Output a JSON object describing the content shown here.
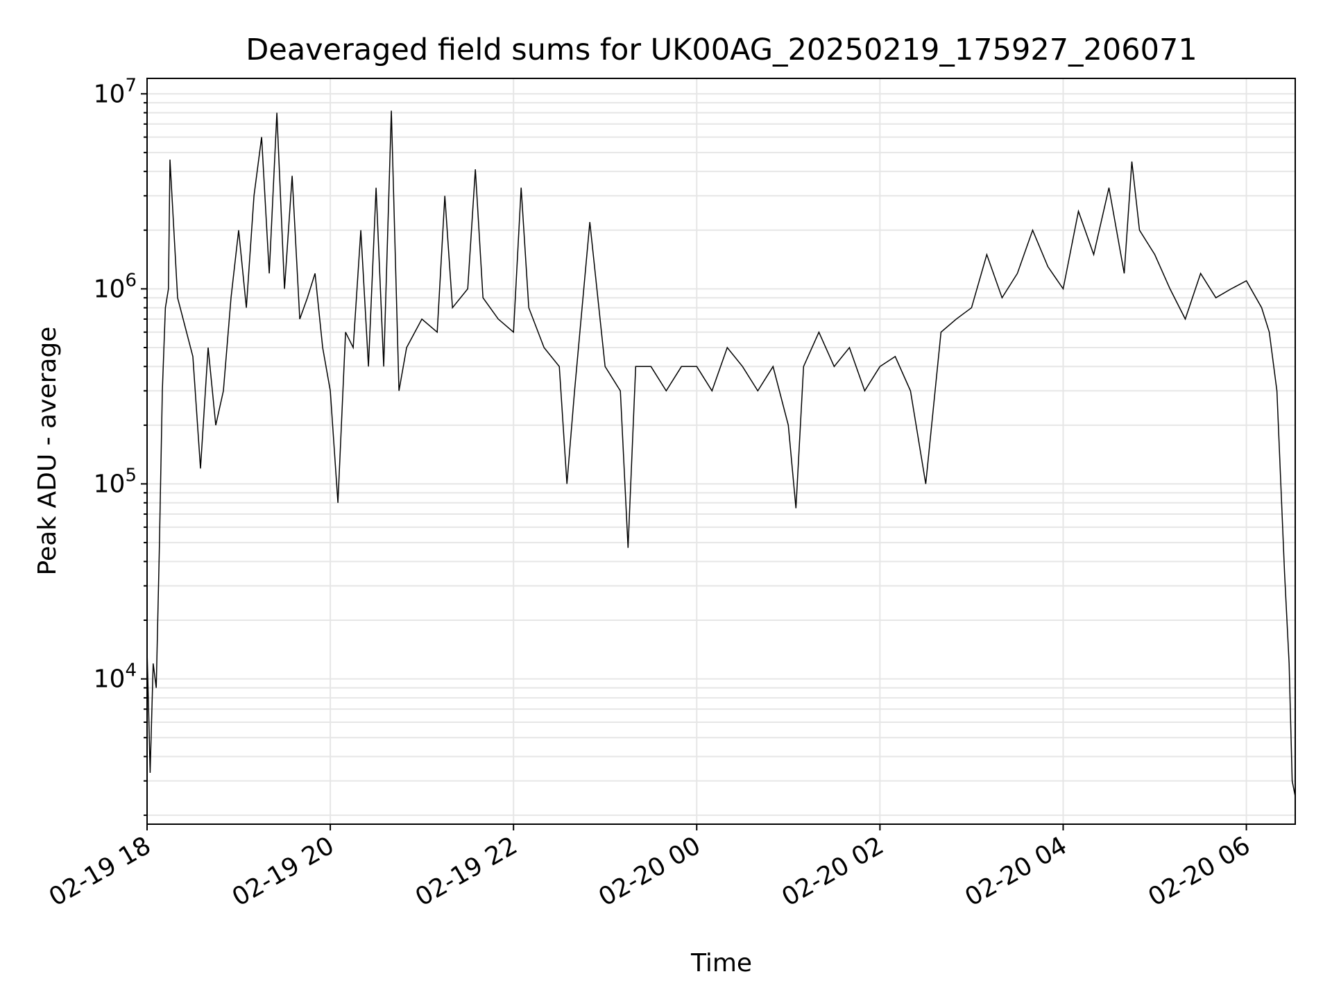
{
  "chart_data": {
    "type": "line",
    "title": "Deaveraged field sums for UK00AG_20250219_175927_206071",
    "xlabel": "Time",
    "ylabel": "Peak ADU - average",
    "y_scale": "log",
    "ylim": [
      1800,
      12000000
    ],
    "xlim": [
      "2025-02-19T18:00",
      "2025-02-20T06:32"
    ],
    "grid": true,
    "line_color": "#000000",
    "grid_color": "#e6e6e6",
    "x_ticks": [
      "02-19 18",
      "02-19 20",
      "02-19 22",
      "02-20 00",
      "02-20 02",
      "02-20 04",
      "02-20 06"
    ],
    "y_ticks": [
      {
        "base": "10",
        "exp": "4"
      },
      {
        "base": "10",
        "exp": "5"
      },
      {
        "base": "10",
        "exp": "6"
      },
      {
        "base": "10",
        "exp": "7"
      }
    ],
    "series": [
      {
        "points": [
          [
            "2025-02-19T18:00",
            14000
          ],
          [
            "2025-02-19T18:01",
            7000
          ],
          [
            "2025-02-19T18:02",
            3300
          ],
          [
            "2025-02-19T18:04",
            12000
          ],
          [
            "2025-02-19T18:06",
            9000
          ],
          [
            "2025-02-19T18:08",
            45000
          ],
          [
            "2025-02-19T18:10",
            300000
          ],
          [
            "2025-02-19T18:12",
            800000
          ],
          [
            "2025-02-19T18:14",
            1000000
          ],
          [
            "2025-02-19T18:15",
            4600000
          ],
          [
            "2025-02-19T18:20",
            900000
          ],
          [
            "2025-02-19T18:30",
            450000
          ],
          [
            "2025-02-19T18:35",
            120000
          ],
          [
            "2025-02-19T18:40",
            500000
          ],
          [
            "2025-02-19T18:45",
            200000
          ],
          [
            "2025-02-19T18:50",
            300000
          ],
          [
            "2025-02-19T18:55",
            900000
          ],
          [
            "2025-02-19T19:00",
            2000000
          ],
          [
            "2025-02-19T19:05",
            800000
          ],
          [
            "2025-02-19T19:10",
            3000000
          ],
          [
            "2025-02-19T19:15",
            6000000
          ],
          [
            "2025-02-19T19:20",
            1200000
          ],
          [
            "2025-02-19T19:25",
            8000000
          ],
          [
            "2025-02-19T19:30",
            1000000
          ],
          [
            "2025-02-19T19:35",
            3800000
          ],
          [
            "2025-02-19T19:40",
            700000
          ],
          [
            "2025-02-19T19:45",
            900000
          ],
          [
            "2025-02-19T19:50",
            1200000
          ],
          [
            "2025-02-19T19:55",
            500000
          ],
          [
            "2025-02-19T20:00",
            300000
          ],
          [
            "2025-02-19T20:05",
            80000
          ],
          [
            "2025-02-19T20:10",
            600000
          ],
          [
            "2025-02-19T20:15",
            500000
          ],
          [
            "2025-02-19T20:20",
            2000000
          ],
          [
            "2025-02-19T20:25",
            400000
          ],
          [
            "2025-02-19T20:30",
            3300000
          ],
          [
            "2025-02-19T20:35",
            400000
          ],
          [
            "2025-02-19T20:40",
            8200000
          ],
          [
            "2025-02-19T20:45",
            300000
          ],
          [
            "2025-02-19T20:50",
            500000
          ],
          [
            "2025-02-19T21:00",
            700000
          ],
          [
            "2025-02-19T21:10",
            600000
          ],
          [
            "2025-02-19T21:15",
            3000000
          ],
          [
            "2025-02-19T21:20",
            800000
          ],
          [
            "2025-02-19T21:30",
            1000000
          ],
          [
            "2025-02-19T21:35",
            4100000
          ],
          [
            "2025-02-19T21:40",
            900000
          ],
          [
            "2025-02-19T21:50",
            700000
          ],
          [
            "2025-02-19T22:00",
            600000
          ],
          [
            "2025-02-19T22:05",
            3300000
          ],
          [
            "2025-02-19T22:10",
            800000
          ],
          [
            "2025-02-19T22:20",
            500000
          ],
          [
            "2025-02-19T22:30",
            400000
          ],
          [
            "2025-02-19T22:35",
            100000
          ],
          [
            "2025-02-19T22:40",
            300000
          ],
          [
            "2025-02-19T22:50",
            2200000
          ],
          [
            "2025-02-19T23:00",
            400000
          ],
          [
            "2025-02-19T23:10",
            300000
          ],
          [
            "2025-02-19T23:15",
            47000
          ],
          [
            "2025-02-19T23:20",
            400000
          ],
          [
            "2025-02-19T23:30",
            400000
          ],
          [
            "2025-02-19T23:40",
            300000
          ],
          [
            "2025-02-19T23:50",
            400000
          ],
          [
            "2025-02-20T00:00",
            400000
          ],
          [
            "2025-02-20T00:10",
            300000
          ],
          [
            "2025-02-20T00:20",
            500000
          ],
          [
            "2025-02-20T00:30",
            400000
          ],
          [
            "2025-02-20T00:40",
            300000
          ],
          [
            "2025-02-20T00:50",
            400000
          ],
          [
            "2025-02-20T01:00",
            200000
          ],
          [
            "2025-02-20T01:05",
            75000
          ],
          [
            "2025-02-20T01:10",
            400000
          ],
          [
            "2025-02-20T01:20",
            600000
          ],
          [
            "2025-02-20T01:30",
            400000
          ],
          [
            "2025-02-20T01:40",
            500000
          ],
          [
            "2025-02-20T01:50",
            300000
          ],
          [
            "2025-02-20T02:00",
            400000
          ],
          [
            "2025-02-20T02:10",
            450000
          ],
          [
            "2025-02-20T02:20",
            300000
          ],
          [
            "2025-02-20T02:30",
            100000
          ],
          [
            "2025-02-20T02:40",
            600000
          ],
          [
            "2025-02-20T02:50",
            700000
          ],
          [
            "2025-02-20T03:00",
            800000
          ],
          [
            "2025-02-20T03:10",
            1500000
          ],
          [
            "2025-02-20T03:20",
            900000
          ],
          [
            "2025-02-20T03:30",
            1200000
          ],
          [
            "2025-02-20T03:40",
            2000000
          ],
          [
            "2025-02-20T03:50",
            1300000
          ],
          [
            "2025-02-20T04:00",
            1000000
          ],
          [
            "2025-02-20T04:10",
            2500000
          ],
          [
            "2025-02-20T04:20",
            1500000
          ],
          [
            "2025-02-20T04:30",
            3300000
          ],
          [
            "2025-02-20T04:40",
            1200000
          ],
          [
            "2025-02-20T04:45",
            4500000
          ],
          [
            "2025-02-20T04:50",
            2000000
          ],
          [
            "2025-02-20T05:00",
            1500000
          ],
          [
            "2025-02-20T05:10",
            1000000
          ],
          [
            "2025-02-20T05:20",
            700000
          ],
          [
            "2025-02-20T05:30",
            1200000
          ],
          [
            "2025-02-20T05:40",
            900000
          ],
          [
            "2025-02-20T05:50",
            1000000
          ],
          [
            "2025-02-20T06:00",
            1100000
          ],
          [
            "2025-02-20T06:10",
            800000
          ],
          [
            "2025-02-20T06:15",
            600000
          ],
          [
            "2025-02-20T06:20",
            300000
          ],
          [
            "2025-02-20T06:25",
            35000
          ],
          [
            "2025-02-20T06:28",
            12000
          ],
          [
            "2025-02-20T06:30",
            3000
          ],
          [
            "2025-02-20T06:32",
            2500
          ]
        ]
      }
    ]
  }
}
